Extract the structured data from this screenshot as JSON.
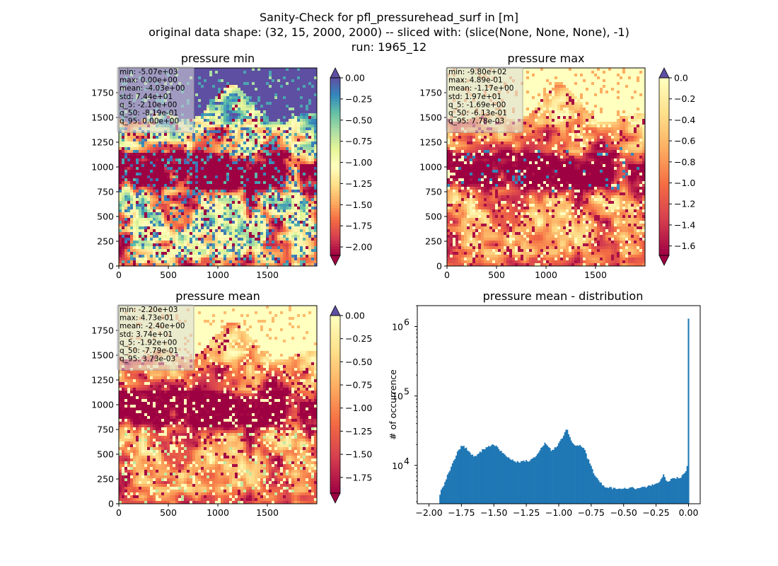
{
  "figure": {
    "suptitle_lines": [
      "Sanity-Check for pfl_pressurehead_surf in [m]",
      "original data shape: (32, 15, 2000, 2000) -- sliced with: (slice(None, None, None), -1)",
      "run: 1965_12"
    ]
  },
  "colors": {
    "spectral": [
      "#9e0142",
      "#d53e4f",
      "#f46d43",
      "#fdae61",
      "#fee08b",
      "#ffffbf",
      "#e6f598",
      "#abdda4",
      "#66c2a5",
      "#3288bd",
      "#5e4fa2"
    ],
    "hist_bar": "#1f77b4",
    "stats_box": "#d9d9d9"
  },
  "chart_data": [
    {
      "type": "heatmap",
      "title": "pressure min",
      "xticks": [
        "0",
        "500",
        "1000",
        "1500"
      ],
      "yticks": [
        "0",
        "250",
        "500",
        "750",
        "1000",
        "1250",
        "1500",
        "1750"
      ],
      "xlim": [
        0,
        2000
      ],
      "ylim": [
        0,
        2000
      ],
      "stats": [
        "min: -5.07e+03",
        "max: 0.00e+00",
        "mean: -4.03e+00",
        "std: 7.44e+01",
        "q_5: -2.10e+00",
        "q_50: -8.19e-01",
        "q_95: 0.00e+00"
      ],
      "colorbar": {
        "colormap": "Spectral",
        "range": [
          -2.1,
          0.0
        ],
        "ticks": [
          "0.00",
          "-0.25",
          "-0.50",
          "-0.75",
          "-1.00",
          "-1.25",
          "-1.50",
          "-1.75",
          "-2.00"
        ],
        "extend": "both",
        "over_color": "#5e4fa2",
        "under_color": "#9e0142"
      }
    },
    {
      "type": "heatmap",
      "title": "pressure max",
      "xticks": [
        "0",
        "500",
        "1000",
        "1500"
      ],
      "yticks": [
        "0",
        "250",
        "500",
        "750",
        "1000",
        "1250",
        "1500",
        "1750"
      ],
      "xlim": [
        0,
        2000
      ],
      "ylim": [
        0,
        2000
      ],
      "stats": [
        "min: -9.80e+02",
        "max: 4.89e-01",
        "mean: -1.17e+00",
        "std: 1.97e+01",
        "q_5: -1.69e+00",
        "q_50: -6.13e-01",
        "q_95: 7.78e-03"
      ],
      "colorbar": {
        "colormap": "Spectral (lower half)",
        "range": [
          -1.69,
          0.0
        ],
        "ticks": [
          "0.0",
          "-0.2",
          "-0.4",
          "-0.6",
          "-0.8",
          "-1.0",
          "-1.2",
          "-1.4",
          "-1.6"
        ],
        "extend": "both",
        "over_color": "#5e4fa2",
        "under_color": "#9e0142"
      }
    },
    {
      "type": "heatmap",
      "title": "pressure mean",
      "xticks": [
        "0",
        "500",
        "1000",
        "1500"
      ],
      "yticks": [
        "0",
        "250",
        "500",
        "750",
        "1000",
        "1250",
        "1500",
        "1750"
      ],
      "xlim": [
        0,
        2000
      ],
      "ylim": [
        0,
        2000
      ],
      "stats": [
        "min: -2.20e+03",
        "max: 4.73e-01",
        "mean: -2.40e+00",
        "std: 3.74e+01",
        "q_5: -1.92e+00",
        "q_50: -7.79e-01",
        "q_95: 3.73e-03"
      ],
      "colorbar": {
        "colormap": "Spectral (lower half)",
        "range": [
          -1.92,
          0.0
        ],
        "ticks": [
          "0.00",
          "-0.25",
          "-0.50",
          "-0.75",
          "-1.00",
          "-1.25",
          "-1.50",
          "-1.75"
        ],
        "extend": "both",
        "over_color": "#5e4fa2",
        "under_color": "#9e0142"
      }
    },
    {
      "type": "bar",
      "title": "pressure mean - distribution",
      "ylabel": "# of occurrence",
      "yscale": "log",
      "xlim": [
        -2.09,
        0.09
      ],
      "ylim": [
        2800,
        2000000
      ],
      "xticks": [
        -2.0,
        -1.75,
        -1.5,
        -1.25,
        -1.0,
        -0.75,
        -0.5,
        -0.25,
        0.0
      ],
      "xtick_labels": [
        "−2.00",
        "−1.75",
        "−1.50",
        "−1.25",
        "−1.00",
        "−0.75",
        "−0.50",
        "−0.25",
        "0.00"
      ],
      "yticks": [
        10000,
        100000,
        1000000
      ],
      "ytick_base": "10",
      "ytick_exponents": [
        "4",
        "5",
        "6"
      ],
      "bin_range": [
        -1.92,
        0.004
      ],
      "bins": 200,
      "profile": [
        [
          -1.92,
          3600
        ],
        [
          -1.9,
          4600
        ],
        [
          -1.87,
          6200
        ],
        [
          -1.84,
          8500
        ],
        [
          -1.8,
          12500
        ],
        [
          -1.77,
          17000
        ],
        [
          -1.74,
          19500
        ],
        [
          -1.71,
          17500
        ],
        [
          -1.68,
          14500
        ],
        [
          -1.65,
          13500
        ],
        [
          -1.62,
          14500
        ],
        [
          -1.59,
          16500
        ],
        [
          -1.56,
          18000
        ],
        [
          -1.52,
          19500
        ],
        [
          -1.48,
          19000
        ],
        [
          -1.45,
          16500
        ],
        [
          -1.42,
          14000
        ],
        [
          -1.38,
          12500
        ],
        [
          -1.34,
          11500
        ],
        [
          -1.31,
          11000
        ],
        [
          -1.28,
          11800
        ],
        [
          -1.24,
          11500
        ],
        [
          -1.21,
          12000
        ],
        [
          -1.18,
          13500
        ],
        [
          -1.14,
          17000
        ],
        [
          -1.11,
          21000
        ],
        [
          -1.08,
          18000
        ],
        [
          -1.05,
          16000
        ],
        [
          -1.02,
          18500
        ],
        [
          -0.99,
          22000
        ],
        [
          -0.96,
          28000
        ],
        [
          -0.94,
          34000
        ],
        [
          -0.92,
          28000
        ],
        [
          -0.9,
          21000
        ],
        [
          -0.87,
          19000
        ],
        [
          -0.84,
          19500
        ],
        [
          -0.81,
          18500
        ],
        [
          -0.78,
          13000
        ],
        [
          -0.75,
          9500
        ],
        [
          -0.72,
          7000
        ],
        [
          -0.69,
          5800
        ],
        [
          -0.66,
          5100
        ],
        [
          -0.62,
          4800
        ],
        [
          -0.58,
          4700
        ],
        [
          -0.54,
          4700
        ],
        [
          -0.5,
          4600
        ],
        [
          -0.45,
          4700
        ],
        [
          -0.4,
          4700
        ],
        [
          -0.35,
          4800
        ],
        [
          -0.3,
          5000
        ],
        [
          -0.26,
          5300
        ],
        [
          -0.22,
          5800
        ],
        [
          -0.19,
          7500
        ],
        [
          -0.17,
          6000
        ],
        [
          -0.14,
          6200
        ],
        [
          -0.1,
          6500
        ],
        [
          -0.06,
          6800
        ],
        [
          -0.04,
          7200
        ],
        [
          -0.02,
          8000
        ],
        [
          -0.008,
          10500
        ],
        [
          -0.004,
          1300000
        ],
        [
          0.004,
          1300000
        ]
      ]
    }
  ]
}
